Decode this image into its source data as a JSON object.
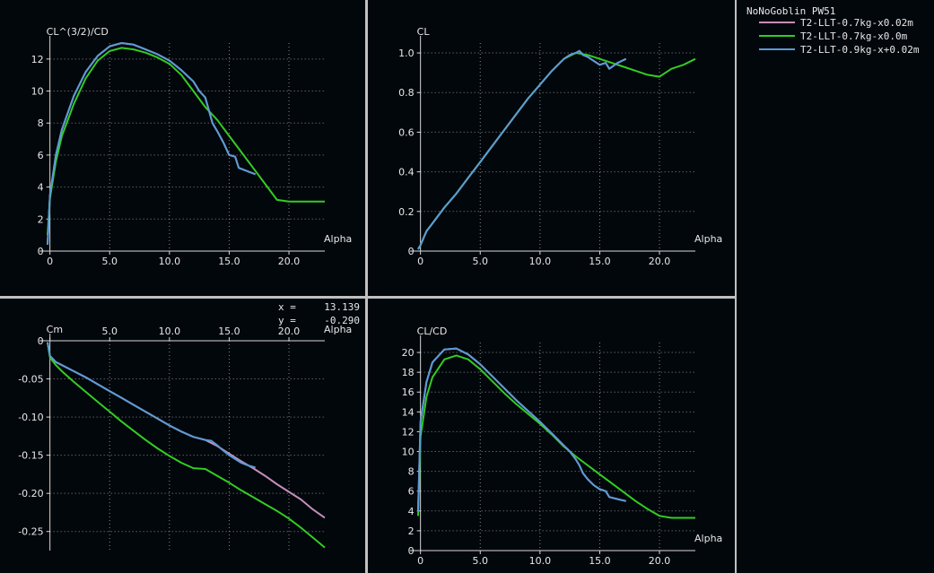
{
  "legend": {
    "title": "NoNoGoblin PW51",
    "entries": [
      {
        "label": "T2-LLT-0.7kg-x0.02m",
        "color": "#c48eb8"
      },
      {
        "label": "T2-LLT-0.7kg-x0.0m",
        "color": "#33cc22"
      },
      {
        "label": "T2-LLT-0.9kg-x+0.02m",
        "color": "#5b9bd5"
      }
    ]
  },
  "cursor": {
    "x_label": "x =",
    "x_value": "13.139",
    "y_label": "y =",
    "y_value": "-0.290"
  },
  "colors": {
    "background": "#02070c",
    "separator": "#c0c0c0",
    "axis": "#d8d8d8",
    "grid": "#8a8a8a",
    "text": "#e8e8e8"
  },
  "chart_data": [
    {
      "type": "line",
      "ylabel": "CL^(3/2)/CD",
      "xlabel": "Alpha",
      "xlim": [
        -0.5,
        23
      ],
      "ylim": [
        0,
        13
      ],
      "xticks": [
        0,
        5,
        10,
        15,
        20
      ],
      "xtick_labels": [
        "0",
        "5.0",
        "10.0",
        "15.0",
        "20.0"
      ],
      "yticks": [
        0,
        2,
        4,
        6,
        8,
        10,
        12
      ],
      "ytick_labels": [
        "0",
        "2",
        "4",
        "6",
        "8",
        "10",
        "12"
      ],
      "x_axis_at_top": false,
      "grid": true,
      "series": [
        {
          "name": "T2-LLT-0.7kg-x0.02m",
          "color": "#c48eb8",
          "x": [
            -0.2,
            0,
            0.5,
            1,
            2,
            3,
            4,
            5,
            6,
            7,
            8,
            9,
            10,
            11,
            12,
            12.5,
            13,
            13.3,
            13.6,
            14,
            14.5,
            15,
            15.5,
            15.8,
            16.5,
            17.2
          ],
          "y": [
            0.4,
            3.5,
            6.0,
            7.6,
            9.7,
            11.2,
            12.2,
            12.8,
            13.0,
            12.9,
            12.6,
            12.3,
            11.9,
            11.3,
            10.6,
            10.0,
            9.6,
            8.8,
            8.0,
            7.5,
            6.8,
            6.0,
            5.9,
            5.2,
            5.0,
            4.8
          ]
        },
        {
          "name": "T2-LLT-0.7kg-x0.0m",
          "color": "#33cc22",
          "x": [
            -0.2,
            0,
            0.5,
            1,
            2,
            3,
            4,
            5,
            6,
            7,
            8,
            9,
            10,
            11,
            12,
            13,
            14,
            15,
            16,
            17,
            18,
            19,
            20,
            21,
            22,
            23
          ],
          "y": [
            1.0,
            3.3,
            5.6,
            7.2,
            9.2,
            10.8,
            11.9,
            12.5,
            12.7,
            12.6,
            12.4,
            12.1,
            11.7,
            11.0,
            10.0,
            9.0,
            8.2,
            7.2,
            6.2,
            5.2,
            4.2,
            3.2,
            3.1,
            3.1,
            3.1,
            3.1
          ]
        },
        {
          "name": "T2-LLT-0.9kg-x+0.02m",
          "color": "#5b9bd5",
          "x": [
            -0.2,
            0,
            0.5,
            1,
            2,
            3,
            4,
            5,
            6,
            7,
            8,
            9,
            10,
            11,
            12,
            12.5,
            13,
            13.3,
            13.6,
            14,
            14.5,
            15,
            15.5,
            15.8,
            16.5,
            17.2
          ],
          "y": [
            0.4,
            3.5,
            6.0,
            7.6,
            9.7,
            11.2,
            12.2,
            12.8,
            13.0,
            12.9,
            12.6,
            12.3,
            11.9,
            11.3,
            10.6,
            10.0,
            9.6,
            8.8,
            8.0,
            7.5,
            6.8,
            6.0,
            5.9,
            5.2,
            5.0,
            4.8
          ]
        }
      ]
    },
    {
      "type": "line",
      "ylabel": "CL",
      "xlabel": "Alpha",
      "xlim": [
        -0.5,
        23
      ],
      "ylim": [
        0,
        1.05
      ],
      "xticks": [
        0,
        5,
        10,
        15,
        20
      ],
      "xtick_labels": [
        "0",
        "5.0",
        "10.0",
        "15.0",
        "20.0"
      ],
      "yticks": [
        0,
        0.2,
        0.4,
        0.6,
        0.8,
        1.0
      ],
      "ytick_labels": [
        "0",
        "0.2",
        "0.4",
        "0.6",
        "0.8",
        "1.0"
      ],
      "x_axis_at_top": false,
      "grid": true,
      "series": [
        {
          "name": "T2-LLT-0.7kg-x0.02m",
          "color": "#c48eb8",
          "x": [
            -0.2,
            0,
            0.5,
            1,
            2,
            3,
            4,
            5,
            6,
            7,
            8,
            9,
            10,
            11,
            12,
            12.5,
            13,
            13.3,
            13.6,
            14,
            14.5,
            15,
            15.5,
            15.8,
            16.5,
            17.2
          ],
          "y": [
            0.01,
            0.03,
            0.1,
            0.14,
            0.22,
            0.29,
            0.37,
            0.45,
            0.53,
            0.61,
            0.69,
            0.77,
            0.84,
            0.91,
            0.97,
            0.99,
            1.0,
            1.01,
            0.99,
            0.98,
            0.96,
            0.94,
            0.95,
            0.92,
            0.95,
            0.97
          ]
        },
        {
          "name": "T2-LLT-0.7kg-x0.0m",
          "color": "#33cc22",
          "x": [
            -0.2,
            0,
            0.5,
            1,
            2,
            3,
            4,
            5,
            6,
            7,
            8,
            9,
            10,
            11,
            12,
            13,
            14,
            15,
            16,
            17,
            18,
            19,
            20,
            21,
            22,
            23
          ],
          "y": [
            0.01,
            0.03,
            0.1,
            0.14,
            0.22,
            0.29,
            0.37,
            0.45,
            0.53,
            0.61,
            0.69,
            0.77,
            0.84,
            0.91,
            0.97,
            1.0,
            0.99,
            0.97,
            0.95,
            0.93,
            0.91,
            0.89,
            0.88,
            0.92,
            0.94,
            0.97
          ]
        },
        {
          "name": "T2-LLT-0.9kg-x+0.02m",
          "color": "#5b9bd5",
          "x": [
            -0.2,
            0,
            0.5,
            1,
            2,
            3,
            4,
            5,
            6,
            7,
            8,
            9,
            10,
            11,
            12,
            12.5,
            13,
            13.3,
            13.6,
            14,
            14.5,
            15,
            15.5,
            15.8,
            16.5,
            17.2
          ],
          "y": [
            0.01,
            0.03,
            0.1,
            0.14,
            0.22,
            0.29,
            0.37,
            0.45,
            0.53,
            0.61,
            0.69,
            0.77,
            0.84,
            0.91,
            0.97,
            0.99,
            1.0,
            1.01,
            0.99,
            0.98,
            0.96,
            0.94,
            0.95,
            0.92,
            0.95,
            0.97
          ]
        }
      ]
    },
    {
      "type": "line",
      "ylabel": "Cm",
      "xlabel": "Alpha",
      "xlim": [
        -0.5,
        23
      ],
      "ylim": [
        -0.275,
        0
      ],
      "xticks": [
        0,
        5,
        10,
        15,
        20
      ],
      "xtick_labels": [
        "0",
        "5.0",
        "10.0",
        "15.0",
        "20.0"
      ],
      "yticks": [
        0,
        -0.05,
        -0.1,
        -0.15,
        -0.2,
        -0.25
      ],
      "ytick_labels": [
        "0",
        "-0.05",
        "-0.10",
        "-0.15",
        "-0.20",
        "-0.25"
      ],
      "x_axis_at_top": true,
      "grid": true,
      "series": [
        {
          "name": "T2-LLT-0.7kg-x0.02m",
          "color": "#c48eb8",
          "x": [
            -0.2,
            0,
            0.5,
            1,
            2,
            3,
            4,
            5,
            6,
            7,
            8,
            9,
            10,
            11,
            12,
            13,
            14,
            15,
            16,
            17,
            18,
            19,
            20,
            21,
            22,
            23
          ],
          "y": [
            -0.002,
            -0.02,
            -0.028,
            -0.032,
            -0.04,
            -0.048,
            -0.057,
            -0.066,
            -0.075,
            -0.084,
            -0.093,
            -0.102,
            -0.111,
            -0.119,
            -0.126,
            -0.13,
            -0.138,
            -0.148,
            -0.158,
            -0.167,
            -0.177,
            -0.188,
            -0.198,
            -0.208,
            -0.221,
            -0.232
          ]
        },
        {
          "name": "T2-LLT-0.7kg-x0.0m",
          "color": "#33cc22",
          "x": [
            -0.2,
            0,
            0.5,
            1,
            2,
            3,
            4,
            5,
            6,
            7,
            8,
            9,
            10,
            11,
            12,
            13,
            14,
            15,
            16,
            17,
            18,
            19,
            20,
            21,
            22,
            23
          ],
          "y": [
            -0.002,
            -0.022,
            -0.032,
            -0.04,
            -0.054,
            -0.067,
            -0.08,
            -0.093,
            -0.106,
            -0.118,
            -0.13,
            -0.141,
            -0.151,
            -0.16,
            -0.167,
            -0.168,
            -0.177,
            -0.186,
            -0.196,
            -0.205,
            -0.214,
            -0.223,
            -0.233,
            -0.245,
            -0.258,
            -0.271
          ]
        },
        {
          "name": "T2-LLT-0.9kg-x+0.02m",
          "color": "#5b9bd5",
          "x": [
            -0.2,
            0,
            0.5,
            1,
            2,
            3,
            4,
            5,
            6,
            7,
            8,
            9,
            10,
            11,
            12,
            13,
            13.5,
            14,
            14.5,
            15,
            15.5,
            16,
            16.5,
            17.2
          ],
          "y": [
            -0.002,
            -0.02,
            -0.028,
            -0.032,
            -0.04,
            -0.048,
            -0.057,
            -0.066,
            -0.075,
            -0.084,
            -0.093,
            -0.102,
            -0.111,
            -0.119,
            -0.126,
            -0.13,
            -0.131,
            -0.137,
            -0.144,
            -0.15,
            -0.155,
            -0.16,
            -0.163,
            -0.166
          ]
        }
      ]
    },
    {
      "type": "line",
      "ylabel": "CL/CD",
      "xlabel": "Alpha",
      "xlim": [
        -0.5,
        23
      ],
      "ylim": [
        0,
        21
      ],
      "xticks": [
        0,
        5,
        10,
        15,
        20
      ],
      "xtick_labels": [
        "0",
        "5.0",
        "10.0",
        "15.0",
        "20.0"
      ],
      "yticks": [
        0,
        2,
        4,
        6,
        8,
        10,
        12,
        14,
        16,
        18,
        20
      ],
      "ytick_labels": [
        "0",
        "2",
        "4",
        "6",
        "8",
        "10",
        "12",
        "14",
        "16",
        "18",
        "20"
      ],
      "x_axis_at_top": false,
      "grid": true,
      "series": [
        {
          "name": "T2-LLT-0.7kg-x0.02m",
          "color": "#c48eb8",
          "x": [
            -0.2,
            0,
            0.5,
            1,
            2,
            3,
            4,
            5,
            6,
            7,
            8,
            9,
            10,
            11,
            12,
            12.5,
            13,
            13.3,
            13.6,
            14,
            14.5,
            15,
            15.5,
            15.8,
            16.5,
            17.2
          ],
          "y": [
            4.0,
            13.0,
            17.0,
            19.0,
            20.3,
            20.4,
            19.8,
            18.8,
            17.6,
            16.4,
            15.2,
            14.1,
            13.0,
            11.8,
            10.6,
            10.0,
            9.2,
            8.6,
            7.8,
            7.2,
            6.6,
            6.2,
            6.0,
            5.4,
            5.2,
            5.0
          ]
        },
        {
          "name": "T2-LLT-0.7kg-x0.0m",
          "color": "#33cc22",
          "x": [
            -0.2,
            0,
            0.5,
            1,
            2,
            3,
            4,
            5,
            6,
            7,
            8,
            9,
            10,
            11,
            12,
            13,
            14,
            15,
            16,
            17,
            18,
            19,
            20,
            21,
            22,
            23
          ],
          "y": [
            3.5,
            11.5,
            15.5,
            17.5,
            19.3,
            19.7,
            19.3,
            18.3,
            17.1,
            15.9,
            14.8,
            13.8,
            12.8,
            11.7,
            10.5,
            9.5,
            8.6,
            7.7,
            6.8,
            5.9,
            5.0,
            4.2,
            3.5,
            3.3,
            3.3,
            3.3
          ]
        },
        {
          "name": "T2-LLT-0.9kg-x+0.02m",
          "color": "#5b9bd5",
          "x": [
            -0.2,
            0,
            0.5,
            1,
            2,
            3,
            4,
            5,
            6,
            7,
            8,
            9,
            10,
            11,
            12,
            12.5,
            13,
            13.3,
            13.6,
            14,
            14.5,
            15,
            15.5,
            15.8,
            16.5,
            17.2
          ],
          "y": [
            4.0,
            13.0,
            17.0,
            19.0,
            20.3,
            20.4,
            19.8,
            18.8,
            17.6,
            16.4,
            15.2,
            14.1,
            13.0,
            11.8,
            10.6,
            10.0,
            9.2,
            8.6,
            7.8,
            7.2,
            6.6,
            6.2,
            6.0,
            5.4,
            5.2,
            5.0
          ]
        }
      ]
    }
  ]
}
